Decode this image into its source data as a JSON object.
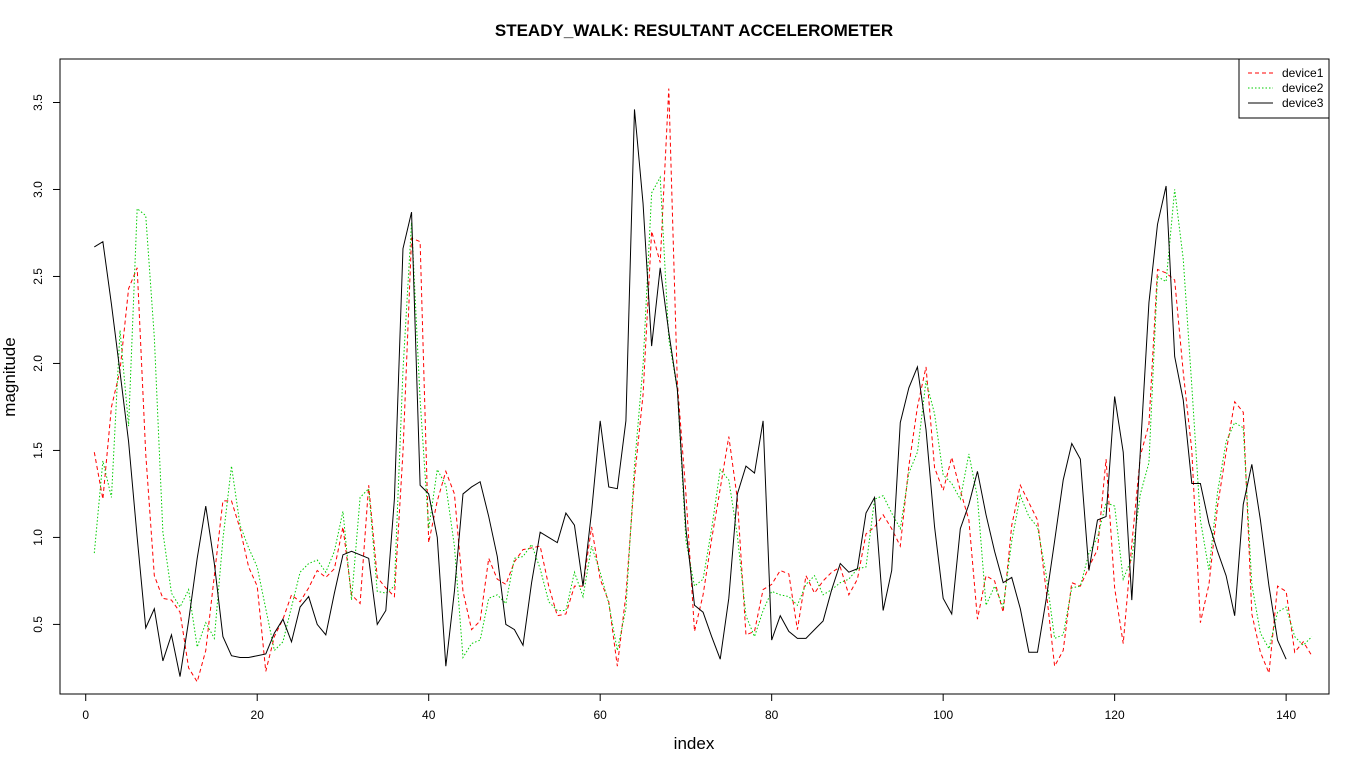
{
  "chart_data": {
    "type": "line",
    "title": "STEADY_WALK:  RESULTANT ACCELEROMETER",
    "xlabel": "index",
    "ylabel": "magnitude",
    "xlim": [
      -3,
      145
    ],
    "ylim": [
      0.1,
      3.75
    ],
    "xticks": [
      0,
      20,
      40,
      60,
      80,
      100,
      120,
      140
    ],
    "yticks": [
      0.5,
      1.0,
      1.5,
      2.0,
      2.5,
      3.0,
      3.5
    ],
    "ytick_labels": [
      "0.5",
      "1.0",
      "1.5",
      "2.0",
      "2.5",
      "3.0",
      "3.5"
    ],
    "grid": false,
    "legend_position": "top-right",
    "series": [
      {
        "name": "device1",
        "color": "#ff0000",
        "dash": "dashed",
        "values": [
          1.49,
          1.22,
          1.75,
          1.96,
          2.43,
          2.55,
          1.48,
          0.78,
          0.65,
          0.64,
          0.57,
          0.25,
          0.17,
          0.35,
          0.78,
          1.21,
          1.21,
          1.05,
          0.83,
          0.72,
          0.23,
          0.43,
          0.53,
          0.67,
          0.63,
          0.71,
          0.81,
          0.77,
          0.82,
          1.06,
          0.67,
          0.62,
          1.3,
          0.77,
          0.71,
          0.66,
          1.49,
          2.72,
          2.7,
          0.97,
          1.21,
          1.38,
          1.25,
          0.69,
          0.47,
          0.52,
          0.88,
          0.76,
          0.73,
          0.86,
          0.93,
          0.94,
          0.95,
          0.72,
          0.55,
          0.56,
          0.72,
          0.72,
          1.06,
          0.76,
          0.63,
          0.26,
          0.67,
          1.34,
          1.82,
          2.76,
          2.58,
          3.58,
          1.89,
          1.25,
          0.46,
          0.67,
          0.99,
          1.28,
          1.58,
          1.22,
          0.44,
          0.46,
          0.7,
          0.73,
          0.81,
          0.79,
          0.47,
          0.78,
          0.68,
          0.75,
          0.8,
          0.83,
          0.67,
          0.76,
          1.02,
          1.06,
          1.13,
          1.05,
          0.95,
          1.41,
          1.75,
          1.98,
          1.4,
          1.27,
          1.46,
          1.27,
          1.1,
          0.53,
          0.78,
          0.75,
          0.57,
          1.07,
          1.3,
          1.2,
          1.1,
          0.7,
          0.26,
          0.35,
          0.74,
          0.72,
          0.83,
          0.93,
          1.45,
          0.71,
          0.39,
          0.96,
          1.47,
          1.65,
          2.54,
          2.52,
          2.48,
          1.95,
          1.5,
          0.51,
          0.73,
          1.18,
          1.49,
          1.78,
          1.72,
          0.56,
          0.34,
          0.22,
          0.72,
          0.69,
          0.34,
          0.4,
          0.32
        ]
      },
      {
        "name": "device2",
        "color": "#00cc00",
        "dash": "dotted",
        "values": [
          0.91,
          1.44,
          1.23,
          2.19,
          1.64,
          2.89,
          2.85,
          2.15,
          1.03,
          0.68,
          0.6,
          0.7,
          0.37,
          0.51,
          0.42,
          0.99,
          1.41,
          1.07,
          0.94,
          0.83,
          0.59,
          0.35,
          0.4,
          0.6,
          0.8,
          0.85,
          0.87,
          0.8,
          0.92,
          1.15,
          0.64,
          1.23,
          1.28,
          0.69,
          0.68,
          0.72,
          1.96,
          2.81,
          1.79,
          1.05,
          1.39,
          1.3,
          0.95,
          0.31,
          0.39,
          0.41,
          0.65,
          0.67,
          0.62,
          0.88,
          0.89,
          0.96,
          0.82,
          0.63,
          0.58,
          0.58,
          0.8,
          0.66,
          0.95,
          0.8,
          0.62,
          0.35,
          0.59,
          1.41,
          1.99,
          2.98,
          3.07,
          2.14,
          1.85,
          0.98,
          0.72,
          0.76,
          1.05,
          1.39,
          1.33,
          1.01,
          0.55,
          0.43,
          0.58,
          0.69,
          0.67,
          0.66,
          0.61,
          0.73,
          0.78,
          0.67,
          0.7,
          0.74,
          0.76,
          0.82,
          0.83,
          1.22,
          1.24,
          1.14,
          1.05,
          1.37,
          1.49,
          1.9,
          1.71,
          1.36,
          1.31,
          1.22,
          1.48,
          1.23,
          0.61,
          0.72,
          0.6,
          0.98,
          1.24,
          1.12,
          1.06,
          0.79,
          0.42,
          0.44,
          0.71,
          0.72,
          0.91,
          1.0,
          1.2,
          1.18,
          0.76,
          0.88,
          1.25,
          1.43,
          2.5,
          2.47,
          3.0,
          2.6,
          1.87,
          1.1,
          0.81,
          1.26,
          1.55,
          1.66,
          1.63,
          0.73,
          0.45,
          0.36,
          0.57,
          0.6,
          0.43,
          0.38,
          0.43
        ]
      },
      {
        "name": "device3",
        "color": "#000000",
        "dash": "solid",
        "values": [
          2.67,
          2.7,
          2.34,
          1.95,
          1.55,
          1.0,
          0.48,
          0.59,
          0.29,
          0.44,
          0.2,
          0.52,
          0.88,
          1.18,
          0.85,
          0.43,
          0.32,
          0.31,
          0.31,
          0.32,
          0.33,
          0.45,
          0.53,
          0.4,
          0.6,
          0.66,
          0.5,
          0.44,
          0.68,
          0.9,
          0.92,
          0.9,
          0.88,
          0.5,
          0.58,
          1.22,
          2.66,
          2.87,
          1.3,
          1.25,
          1.0,
          0.26,
          0.69,
          1.25,
          1.29,
          1.32,
          1.12,
          0.89,
          0.5,
          0.47,
          0.38,
          0.74,
          1.03,
          1.0,
          0.97,
          1.14,
          1.07,
          0.72,
          1.15,
          1.67,
          1.29,
          1.28,
          1.67,
          3.46,
          2.92,
          2.1,
          2.55,
          2.18,
          1.85,
          1.05,
          0.61,
          0.57,
          0.43,
          0.3,
          0.65,
          1.25,
          1.41,
          1.37,
          1.67,
          0.41,
          0.55,
          0.46,
          0.42,
          0.42,
          0.47,
          0.52,
          0.7,
          0.85,
          0.8,
          0.82,
          1.14,
          1.23,
          0.58,
          0.81,
          1.66,
          1.86,
          1.98,
          1.62,
          1.06,
          0.65,
          0.56,
          1.05,
          1.19,
          1.38,
          1.13,
          0.92,
          0.74,
          0.77,
          0.59,
          0.34,
          0.34,
          0.64,
          0.98,
          1.33,
          1.54,
          1.45,
          0.81,
          1.1,
          1.12,
          1.81,
          1.49,
          0.64,
          1.5,
          2.35,
          2.8,
          3.02,
          2.04,
          1.79,
          1.31,
          1.31,
          1.08,
          0.92,
          0.78,
          0.55,
          1.19,
          1.42,
          1.1,
          0.72,
          0.41,
          0.3
        ]
      }
    ]
  }
}
